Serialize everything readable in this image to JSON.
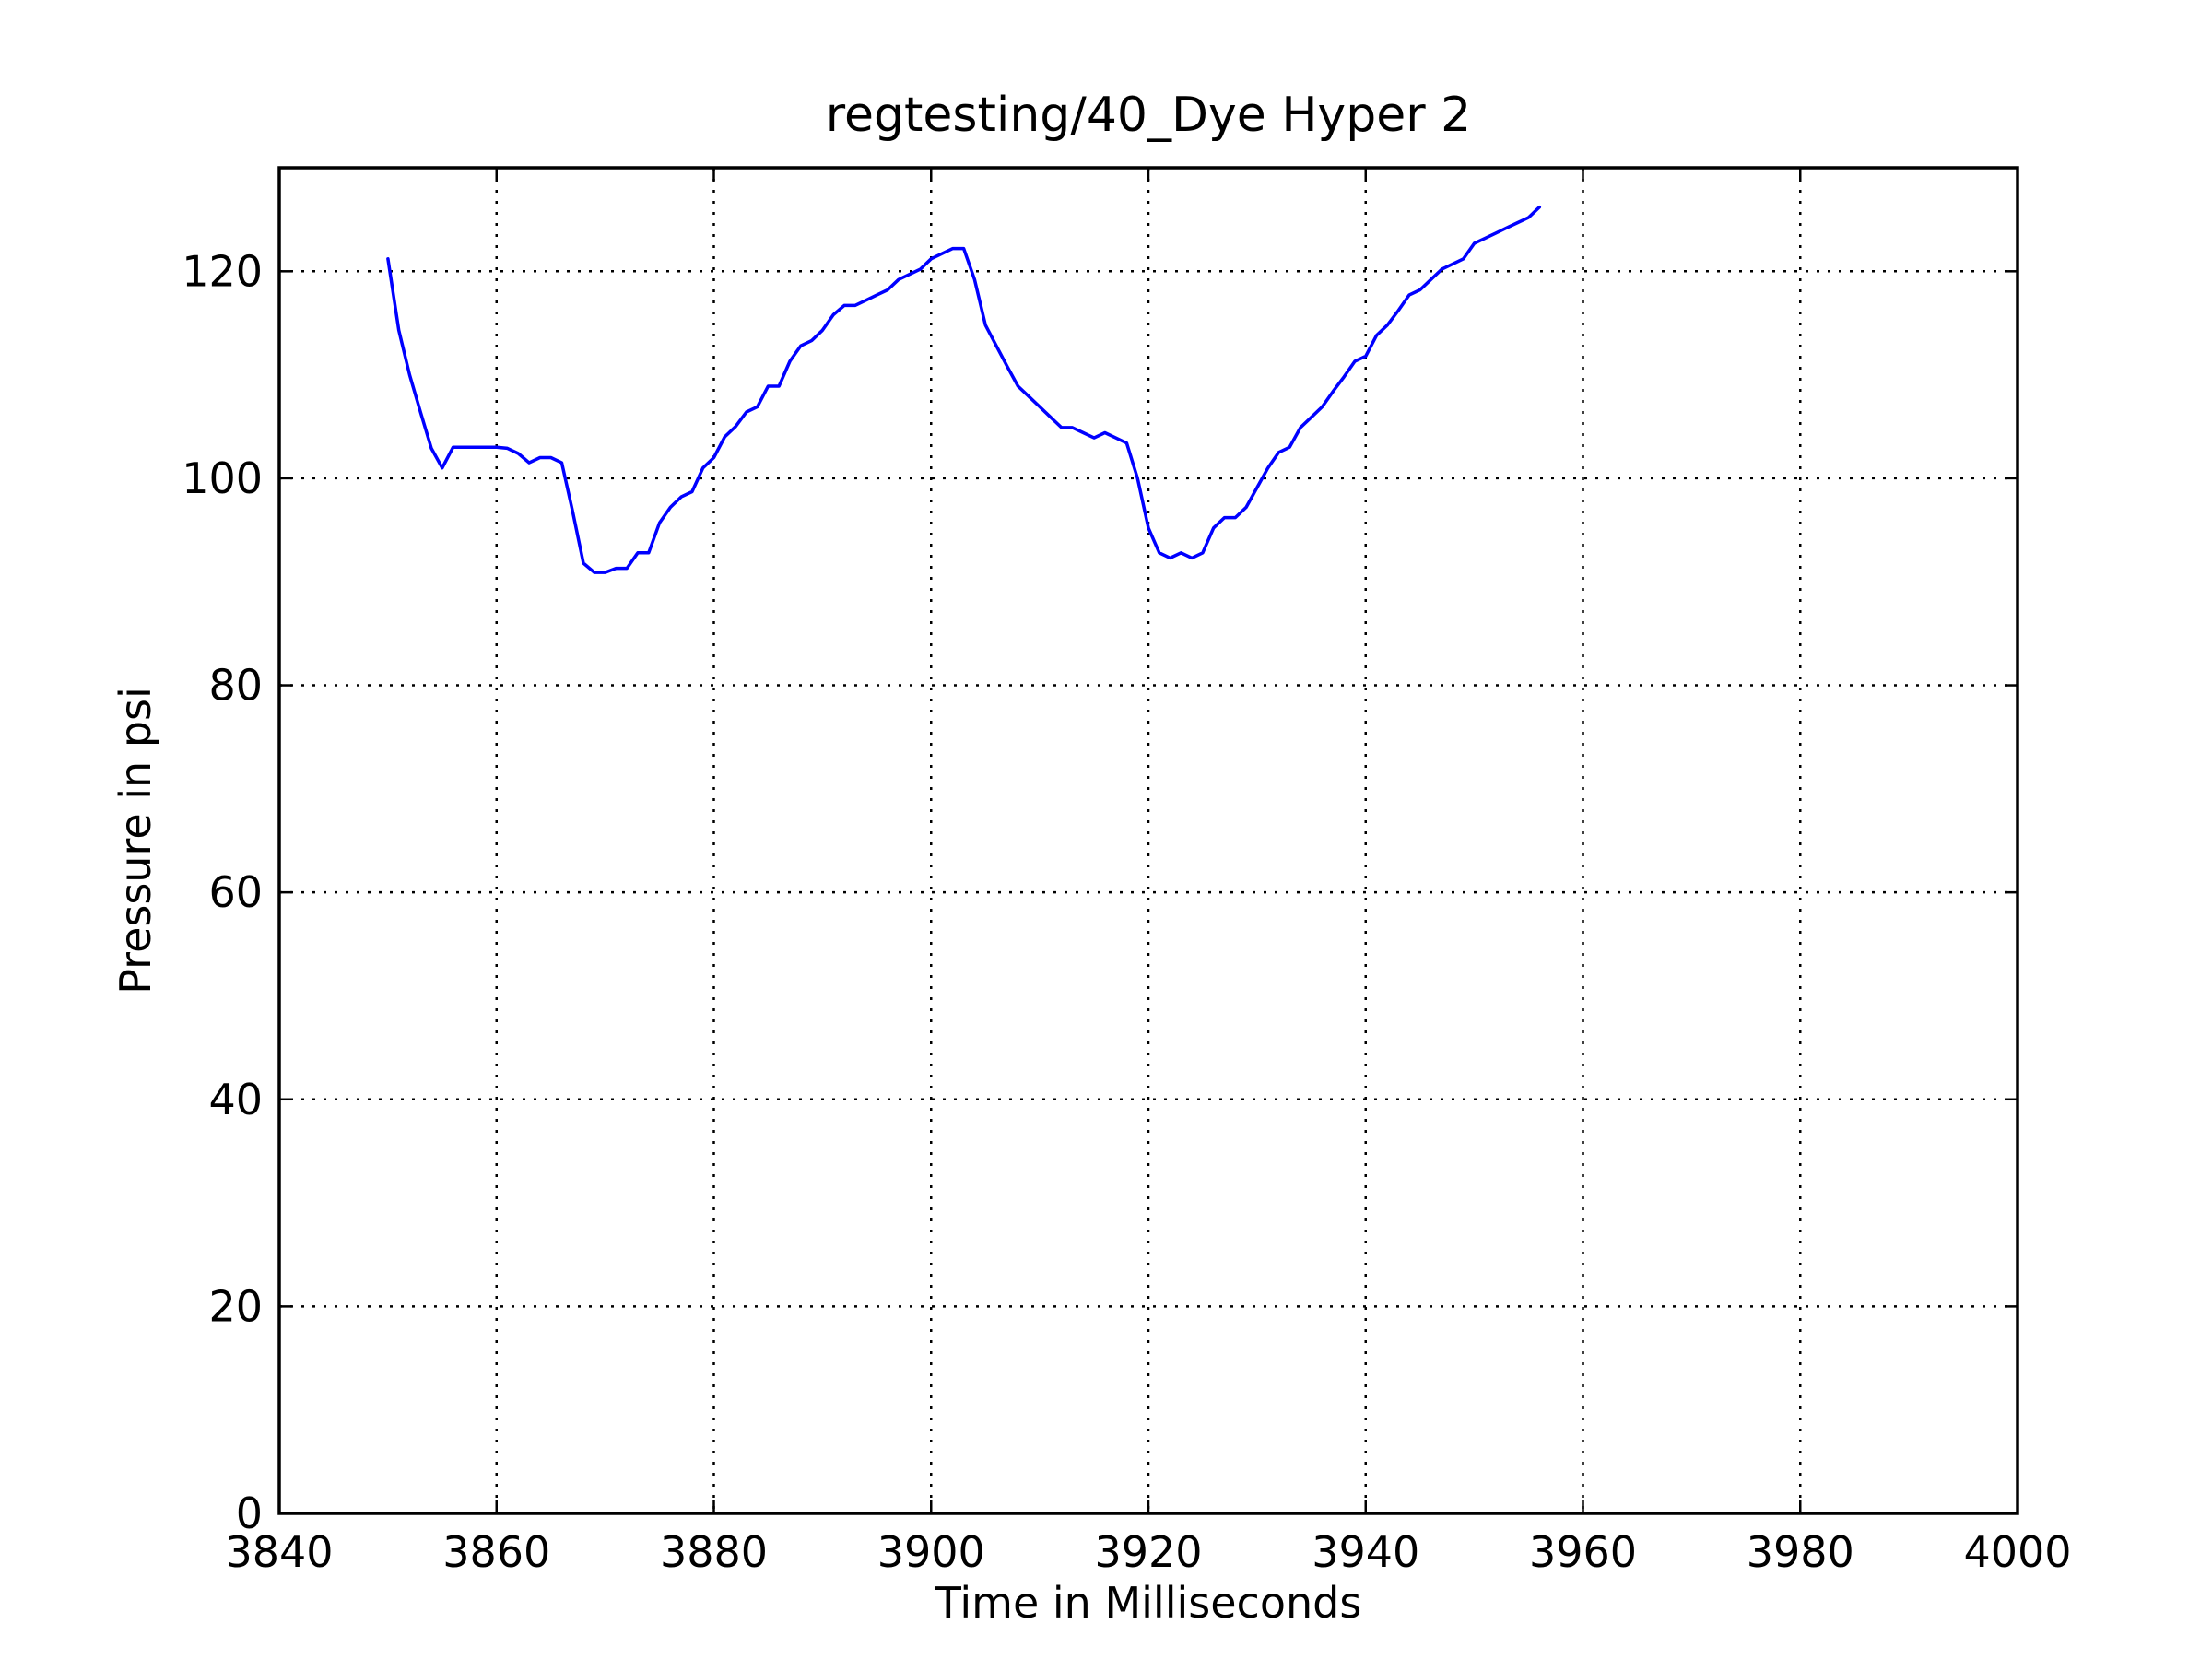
{
  "chart_data": {
    "type": "line",
    "title": "regtesting/40_Dye Hyper 2",
    "xlabel": "Time in Milliseconds",
    "ylabel": "Pressure in psi",
    "xlim": [
      3840,
      4000
    ],
    "ylim": [
      0,
      130
    ],
    "xticks": [
      3840,
      3860,
      3880,
      3900,
      3920,
      3940,
      3960,
      3980,
      4000
    ],
    "yticks": [
      0,
      20,
      40,
      60,
      80,
      100,
      120
    ],
    "grid": true,
    "line_color": "#0000ff",
    "series": [
      {
        "x": [
          3850,
          3851,
          3852,
          3853,
          3854,
          3855,
          3856,
          3857,
          3858,
          3859,
          3860,
          3861,
          3862,
          3863,
          3864,
          3865,
          3866,
          3867,
          3868,
          3869,
          3870,
          3871,
          3872,
          3873,
          3874,
          3875,
          3876,
          3877,
          3878,
          3879,
          3880,
          3881,
          3882,
          3883,
          3884,
          3885,
          3886,
          3887,
          3888,
          3889,
          3890,
          3891,
          3892,
          3893,
          3894,
          3895,
          3896,
          3897,
          3898,
          3899,
          3900,
          3901,
          3902,
          3903,
          3904,
          3905,
          3906,
          3907,
          3908,
          3909,
          3910,
          3911,
          3912,
          3913,
          3914,
          3915,
          3916,
          3917,
          3918,
          3919,
          3920,
          3921,
          3922,
          3923,
          3924,
          3925,
          3926,
          3927,
          3928,
          3929,
          3930,
          3931,
          3932,
          3933,
          3934,
          3935,
          3936,
          3937,
          3938,
          3939,
          3940,
          3941,
          3942,
          3943,
          3944,
          3945,
          3946,
          3947,
          3948,
          3949,
          3950,
          3951,
          3952,
          3953,
          3954,
          3955,
          3956
        ],
        "y": [
          121.2,
          114.3,
          110,
          106.4,
          102.9,
          101,
          103,
          103,
          103,
          103,
          103,
          102.9,
          102.4,
          101.5,
          102,
          102,
          101.5,
          96.8,
          91.8,
          90.9,
          90.9,
          91.3,
          91.3,
          92.8,
          92.8,
          95.7,
          97.2,
          98.2,
          98.7,
          101,
          102,
          104,
          105,
          106.4,
          106.9,
          108.9,
          108.9,
          111.3,
          112.8,
          113.3,
          114.3,
          115.8,
          116.7,
          116.7,
          117.2,
          117.7,
          118.2,
          119.2,
          119.7,
          120.2,
          121.2,
          121.7,
          122.2,
          122.2,
          119.2,
          114.8,
          112.8,
          110.8,
          108.9,
          107.9,
          106.9,
          105.9,
          104.9,
          104.9,
          104.4,
          103.9,
          104.4,
          103.9,
          103.4,
          100,
          95.2,
          92.8,
          92.3,
          92.8,
          92.3,
          92.8,
          95.2,
          96.2,
          96.2,
          97.2,
          99.1,
          101,
          102.5,
          103,
          104.9,
          105.9,
          106.9,
          108.4,
          109.8,
          111.3,
          111.8,
          113.8,
          114.8,
          116.2,
          117.7,
          118.2,
          119.2,
          120.2,
          120.7,
          121.2,
          122.7,
          123.2,
          123.7,
          124.2,
          124.7,
          125.2,
          126.2
        ]
      }
    ]
  }
}
